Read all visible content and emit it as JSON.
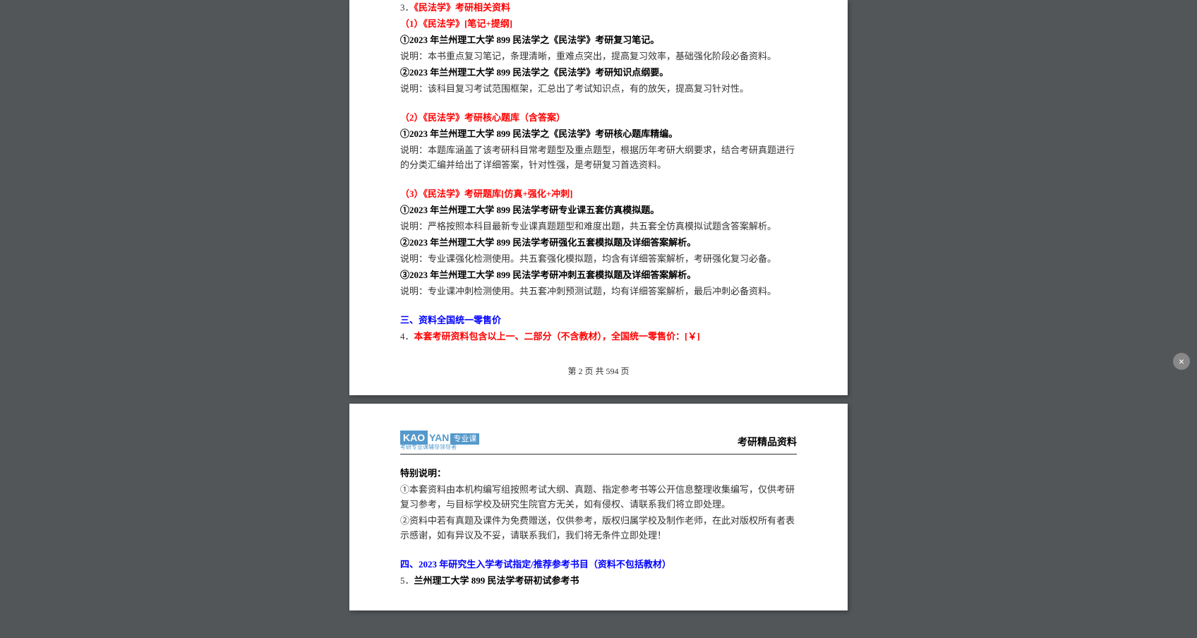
{
  "page1": {
    "line_3": "3．",
    "title_3": "《民法学》考研相关资料",
    "sub_1": "（1）《民法学》[笔记+提纲]",
    "item_1_1": "①2023 年兰州理工大学 899 民法学之《民法学》考研复习笔记。",
    "desc_1_1": "说明：本书重点复习笔记，条理清晰，重难点突出，提高复习效率，基础强化阶段必备资料。",
    "item_1_2": "②2023 年兰州理工大学 899 民法学之《民法学》考研知识点纲要。",
    "desc_1_2": "说明：该科目复习考试范围框架，汇总出了考试知识点，有的放矢，提高复习针对性。",
    "sub_2": "（2）《民法学》考研核心题库（含答案）",
    "item_2_1": "①2023 年兰州理工大学 899 民法学之《民法学》考研核心题库精编。",
    "desc_2_1": "说明：本题库涵盖了该考研科目常考题型及重点题型，根据历年考研大纲要求，结合考研真题进行的分类汇编并给出了详细答案，针对性强，是考研复习首选资料。",
    "sub_3": "（3）《民法学》考研题库[仿真+强化+冲刺]",
    "item_3_1": "①2023 年兰州理工大学 899 民法学考研专业课五套仿真模拟题。",
    "desc_3_1": "说明：严格按照本科目最新专业课真题题型和难度出题，共五套全仿真模拟试题含答案解析。",
    "item_3_2": "②2023 年兰州理工大学 899 民法学考研强化五套模拟题及详细答案解析。",
    "desc_3_2": "说明：专业课强化检测使用。共五套强化模拟题，均含有详细答案解析，考研强化复习必备。",
    "item_3_3": "③2023 年兰州理工大学 899 民法学考研冲刺五套模拟题及详细答案解析。",
    "desc_3_3": "说明：专业课冲刺检测使用。共五套冲刺预测试题，均有详细答案解析，最后冲刺必备资料。",
    "section_3_title": "三、资料全国统一零售价",
    "line_4_num": "4．",
    "line_4_text": "本套考研资料包含以上一、二部分（不含教材），全国统一零售价：[￥]",
    "page_num": "第 2 页 共 594 页"
  },
  "page2": {
    "logo_kao": "KAO",
    "logo_yan": "YAN",
    "logo_text": "专业课",
    "logo_sub": "考研专业课辅导领导者",
    "header_right": "考研精品资料",
    "special_title": "特别说明：",
    "special_1": "①本套资料由本机构编写组按照考试大纲、真题、指定参考书等公开信息整理收集编写，仅供考研复习参考，与目标学校及研究生院官方无关，如有侵权、请联系我们将立即处理。",
    "special_2": "②资料中若有真题及课件为免费赠送，仅供参考，版权归属学校及制作老师，在此对版权所有者表示感谢，如有异议及不妥，请联系我们，我们将无条件立即处理！",
    "section_4_title": "四、2023 年研究生入学考试指定/推荐参考书目（资料不包括教材）",
    "line_5_num": "5．",
    "line_5_text": "兰州理工大学 899 民法学考研初试参考书"
  },
  "close_icon": "×"
}
